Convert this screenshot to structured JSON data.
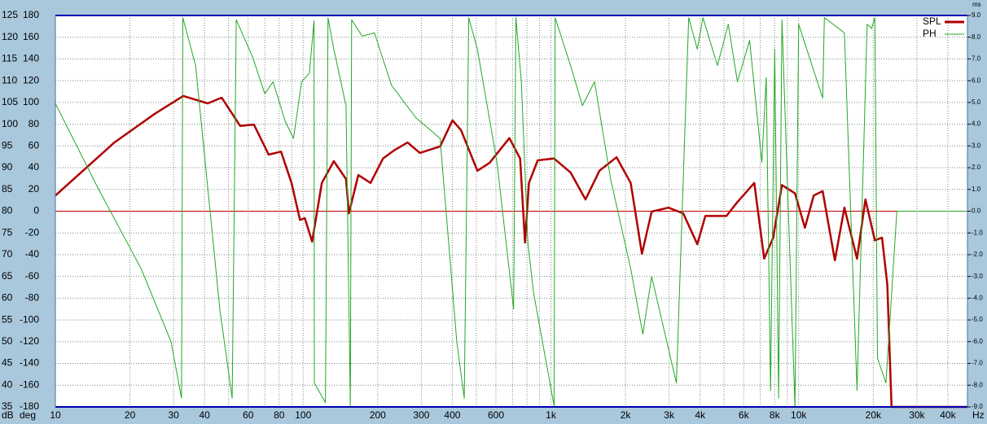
{
  "chart_data": {
    "type": "line",
    "x_label": "Hz",
    "y_label": "dB",
    "y2_label": "deg",
    "y3_label": "ms",
    "x_log": true,
    "xlim": [
      10,
      48000
    ],
    "xticks": [
      10,
      20,
      30,
      40,
      60,
      80,
      100,
      200,
      300,
      400,
      600,
      {
        "value": 1000,
        "label": "1k"
      },
      {
        "value": 2000,
        "label": "2k"
      },
      {
        "value": 3000,
        "label": "3k"
      },
      {
        "value": 4000,
        "label": "4k"
      },
      {
        "value": 6000,
        "label": "6k"
      },
      {
        "value": 8000,
        "label": "8k"
      },
      {
        "value": 10000,
        "label": "10k"
      },
      {
        "value": 20000,
        "label": "20k"
      },
      {
        "value": 30000,
        "label": "30k"
      },
      {
        "value": 40000,
        "label": "40k"
      }
    ],
    "xminor_ticks": [
      50,
      70,
      90,
      500,
      700,
      800,
      900,
      5000,
      7000,
      9000
    ],
    "ylim": [
      35,
      125
    ],
    "yticks": [
      35,
      40,
      45,
      50,
      55,
      60,
      65,
      70,
      75,
      80,
      85,
      90,
      95,
      100,
      105,
      110,
      115,
      120,
      125
    ],
    "y2lim": [
      -180,
      180
    ],
    "y2ticks": [
      -180,
      -160,
      -140,
      -120,
      -100,
      -80,
      -60,
      -40,
      -20,
      0,
      20,
      40,
      60,
      80,
      100,
      120,
      140,
      160,
      180
    ],
    "y3lim": [
      -9,
      9
    ],
    "y3ticks": [
      {
        "value": -9,
        "label": "-9.0"
      },
      {
        "value": -8,
        "label": "-8.0"
      },
      {
        "value": -7,
        "label": "-7.0"
      },
      {
        "value": -6,
        "label": "-6.0"
      },
      {
        "value": -5,
        "label": "-5.0"
      },
      {
        "value": -4,
        "label": "-4.0"
      },
      {
        "value": -3,
        "label": "-3.0"
      },
      {
        "value": -2,
        "label": "-2.0"
      },
      {
        "value": -1,
        "label": "-1.0"
      },
      {
        "value": 0,
        "label": "0.0"
      },
      {
        "value": 1,
        "label": "1.0"
      },
      {
        "value": 2,
        "label": "2.0"
      },
      {
        "value": 3,
        "label": "3.0"
      },
      {
        "value": 4,
        "label": "4.0"
      },
      {
        "value": 5,
        "label": "5.0"
      },
      {
        "value": 6,
        "label": "6.0"
      },
      {
        "value": 7,
        "label": "7.0"
      },
      {
        "value": 8,
        "label": "8.0"
      },
      {
        "value": 9,
        "label": "9.0"
      }
    ],
    "grid": true,
    "hline": 80,
    "hline_color": "#c00000",
    "legend": "upper right",
    "series": [
      {
        "name": "SPL",
        "color": "#b00000",
        "x": [
          10,
          17.3,
          25.2,
          32.8,
          41.2,
          46.9,
          55.7,
          63.3,
          72.6,
          81.4,
          89.8,
          97.1,
          101.6,
          108.7,
          119,
          133,
          149,
          153,
          167,
          187,
          210,
          233,
          264,
          296,
          357,
          401,
          434,
          505,
          565,
          680,
          751,
          786,
          815,
          885,
          1030,
          1200,
          1380,
          1570,
          1840,
          2100,
          2330,
          2550,
          2980,
          3420,
          3900,
          4200,
          5110,
          5660,
          6620,
          7260,
          7890,
          8560,
          9660,
          10600,
          11500,
          12500,
          14000,
          15300,
          17200,
          18600,
          20300,
          21700,
          22800,
          23700,
          48000
        ],
        "values": [
          83.6,
          95.8,
          102.4,
          106.5,
          104.8,
          106.1,
          99.6,
          99.9,
          93.0,
          93.7,
          86.5,
          78.0,
          78.4,
          73.0,
          86.5,
          91.5,
          87.4,
          79.5,
          88.3,
          86.5,
          92.1,
          94.0,
          95.8,
          93.4,
          94.9,
          100.9,
          98.6,
          89.3,
          91.1,
          96.8,
          92.1,
          72.8,
          86.5,
          91.7,
          92.1,
          88.9,
          82.7,
          89.3,
          92.4,
          86.5,
          70.2,
          79.9,
          80.8,
          79.5,
          72.4,
          78.9,
          78.9,
          82.1,
          86.5,
          69.1,
          73.9,
          86.0,
          84.1,
          76.2,
          83.6,
          84.6,
          68.7,
          80.8,
          69.1,
          82.7,
          73.3,
          73.9,
          63.1,
          35,
          35
        ]
      },
      {
        "name": "PH",
        "color": "#22a822",
        "axis": "y2",
        "x": [
          10,
          14.8,
          22.2,
          29.3,
          32.3,
          32.7,
          36.8,
          46.1,
          51.7,
          53.7,
          62.5,
          70.0,
          75.6,
          84.8,
          91.4,
          98.6,
          106,
          110.6,
          111,
          123,
          126,
          133,
          149,
          155,
          157,
          173,
          194,
          227,
          285,
          357,
          417,
          447,
          466,
          505,
          606,
          707,
          722,
          760,
          808,
          851,
          1030,
          1040,
          1200,
          1340,
          1500,
          1740,
          2100,
          2350,
          2550,
          3210,
          3600,
          3900,
          4110,
          4700,
          5200,
          5660,
          6340,
          7100,
          7400,
          7700,
          8000,
          8300,
          8560,
          9660,
          10000,
          12500,
          12700,
          15300,
          17200,
          18900,
          19700,
          20300,
          20800,
          22500,
          24900,
          48000
        ],
        "values": [
          99,
          22,
          -53,
          -120,
          -172,
          178,
          134,
          -90,
          -172,
          176,
          142,
          108,
          119,
          82,
          67,
          119,
          127,
          175,
          -158,
          -176,
          178,
          149,
          97,
          -179,
          176,
          161,
          164,
          116,
          86,
          67,
          -120,
          -172,
          178,
          149,
          45,
          -90,
          178,
          119,
          -30,
          -75,
          -179,
          178,
          134,
          97,
          119,
          30,
          -53,
          -113,
          -60,
          -158,
          178,
          149,
          178,
          134,
          172,
          119,
          157,
          45,
          123,
          -165,
          149,
          -172,
          176,
          -180,
          172,
          104,
          178,
          164,
          -165,
          172,
          168,
          178,
          -135,
          -158,
          0,
          0
        ]
      }
    ]
  }
}
